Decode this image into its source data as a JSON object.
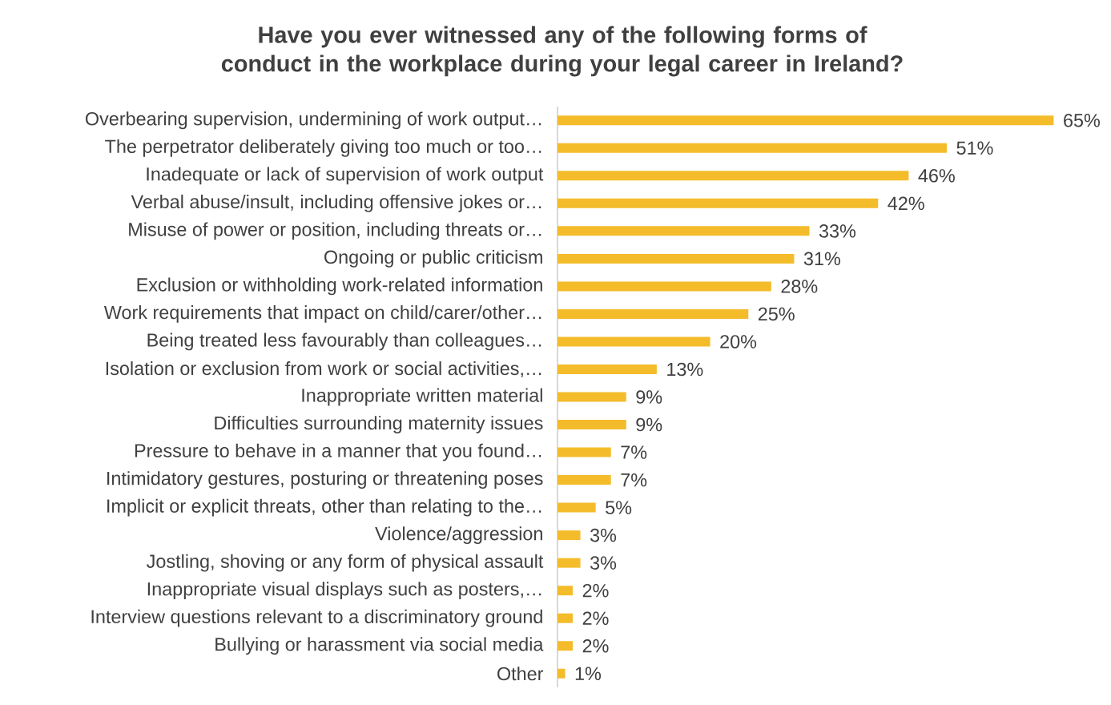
{
  "chart_data": {
    "type": "bar",
    "orientation": "horizontal",
    "title": "Have you ever witnessed any of the following forms of conduct in the workplace during your legal career in Ireland?",
    "categories": [
      "Overbearing supervision, undermining of work output…",
      "The perpetrator deliberately giving too much or too…",
      "Inadequate or lack of supervision of work output",
      "Verbal abuse/insult, including offensive jokes or…",
      "Misuse of power or position, including threats or…",
      "Ongoing or public criticism",
      "Exclusion or withholding work-related information",
      "Work requirements that impact on child/carer/other…",
      "Being treated less favourably than colleagues…",
      "Isolation or exclusion from work or social activities,…",
      "Inappropriate written material",
      "Difficulties surrounding maternity issues",
      "Pressure to behave in a manner that you found…",
      "Intimidatory gestures, posturing or threatening poses",
      "Implicit or explicit threats, other than relating to the…",
      "Violence/aggression",
      "Jostling, shoving or any form of physical assault",
      "Inappropriate visual displays such as posters,…",
      "Interview questions relevant to a discriminatory ground",
      "Bullying or harassment via social media",
      "Other"
    ],
    "values": [
      65,
      51,
      46,
      42,
      33,
      31,
      28,
      25,
      20,
      13,
      9,
      9,
      7,
      7,
      5,
      3,
      3,
      2,
      2,
      2,
      1
    ],
    "value_labels": [
      "65%",
      "51%",
      "46%",
      "42%",
      "33%",
      "31%",
      "28%",
      "25%",
      "20%",
      "13%",
      "9%",
      "9%",
      "7%",
      "7%",
      "5%",
      "3%",
      "3%",
      "2%",
      "2%",
      "2%",
      "1%"
    ],
    "color": "#f4bc2a"
  }
}
